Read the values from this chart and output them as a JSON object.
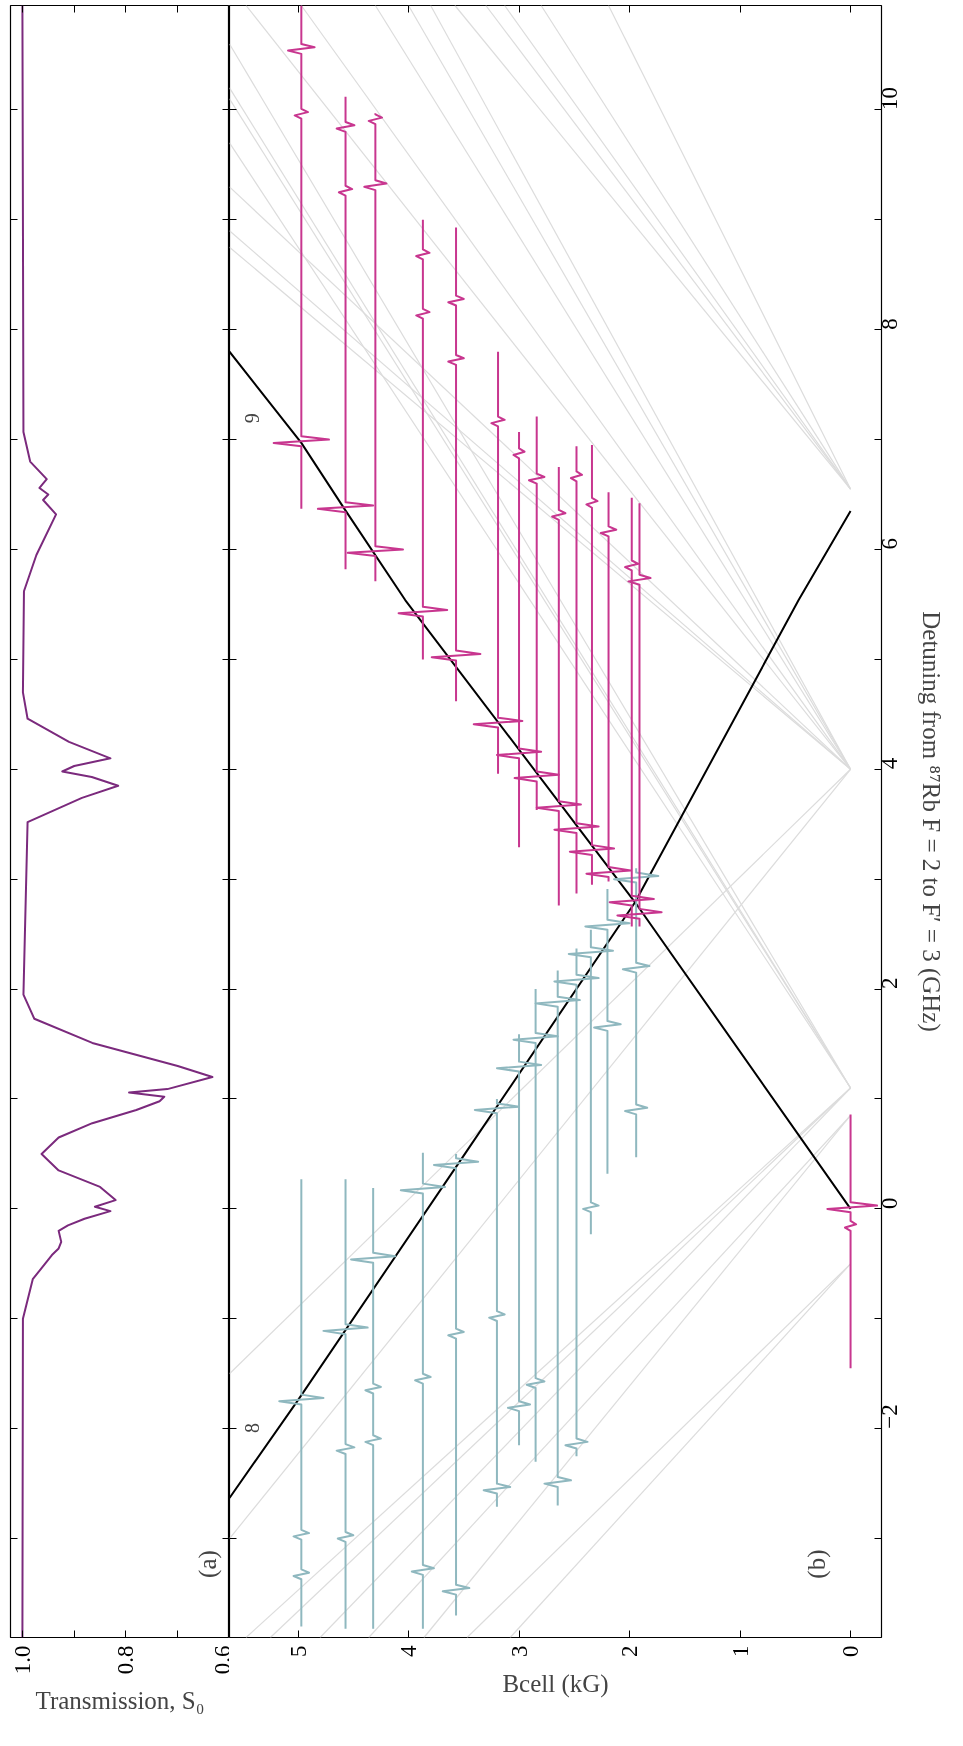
{
  "chart_data": [
    {
      "type": "line",
      "ylim": [
        -3.9,
        10.95
      ],
      "xlim": [
        1.023,
        0.6
      ],
      "yticks": [
        {
          "value": -3,
          "label": null
        },
        {
          "value": -2,
          "label": null
        },
        {
          "value": -1,
          "label": null
        },
        {
          "value": 0,
          "label": null
        },
        {
          "value": 1,
          "label": null
        },
        {
          "value": 2,
          "label": null
        },
        {
          "value": 3,
          "label": null
        },
        {
          "value": 4,
          "label": null
        },
        {
          "value": 5,
          "label": null
        },
        {
          "value": 6,
          "label": null
        },
        {
          "value": 7,
          "label": null
        },
        {
          "value": 8,
          "label": null
        },
        {
          "value": 9,
          "label": null
        },
        {
          "value": 10,
          "label": null
        }
      ],
      "xticks": [
        {
          "value": 0.6,
          "label": "0.6"
        },
        {
          "value": 0.7,
          "label": null
        },
        {
          "value": 0.8,
          "label": "0.8"
        },
        {
          "value": 0.9,
          "label": null
        },
        {
          "value": 1,
          "label": "1.0"
        }
      ],
      "xlabel": "Transmission, S₀",
      "tick_labels": "x",
      "annotations": [
        "(a)"
      ],
      "series": [
        {
          "color": "#7b2a7d",
          "values": [
            -3.9,
            -1.0,
            -0.64,
            -0.42,
            -0.36,
            -0.3,
            -0.2,
            -0.15,
            -0.09,
            -0.02,
            0.02,
            0.08,
            0.2,
            0.35,
            0.5,
            0.65,
            0.78,
            0.9,
            0.98,
            1.02,
            1.06,
            1.09,
            1.2,
            1.3,
            1.51,
            1.73,
            1.95,
            3.52,
            3.74,
            3.85,
            3.93,
            3.98,
            4.03,
            4.1,
            4.25,
            4.46,
            4.7,
            5.62,
            5.95,
            6.32,
            6.45,
            6.5,
            6.56,
            6.64,
            6.8,
            7.07,
            10.95
          ],
          "x": [
            1.0,
            0.999,
            0.98,
            0.943,
            0.93,
            0.925,
            0.93,
            0.912,
            0.88,
            0.83,
            0.86,
            0.82,
            0.85,
            0.93,
            0.963,
            0.93,
            0.865,
            0.78,
            0.735,
            0.726,
            0.794,
            0.72,
            0.633,
            0.7,
            0.865,
            0.977,
            0.998,
            0.99,
            0.885,
            0.815,
            0.866,
            0.923,
            0.9,
            0.83,
            0.91,
            0.99,
            0.999,
            0.997,
            0.973,
            0.935,
            0.96,
            0.95,
            0.967,
            0.953,
            0.985,
            0.998,
            1.0
          ]
        }
      ]
    },
    {
      "type": "line",
      "ylim": [
        -3.9,
        10.95
      ],
      "xlim": [
        5.62,
        -0.28
      ],
      "yticks": [
        {
          "value": -3,
          "label": null
        },
        {
          "value": -2,
          "label": "−2"
        },
        {
          "value": -1,
          "label": null
        },
        0,
        {
          "value": 1,
          "label": null
        },
        2,
        {
          "value": 3,
          "label": null
        },
        4,
        {
          "value": 5,
          "label": null
        },
        6,
        {
          "value": 7,
          "label": null
        },
        8,
        {
          "value": 9,
          "label": null
        },
        10
      ],
      "xticks": [
        0,
        1,
        2,
        3,
        4,
        5
      ],
      "ylabel": "Detuning from ⁸⁷Rb F = 2 to F′ = 3 (GHz)",
      "xlabel": "Bcell (kG)",
      "annotations": [
        "(b)"
      ],
      "series": [
        {
          "color": "#dcdcdc",
          "values": [
            6.55,
            10.95
          ],
          "x": [
            0,
            2.19
          ]
        },
        {
          "color": "#dcdcdc",
          "values": [
            6.55,
            10.95
          ],
          "x": [
            0,
            2.8
          ]
        },
        {
          "color": "#dcdcdc",
          "values": [
            6.55,
            10.95
          ],
          "x": [
            0,
            3.13
          ]
        },
        {
          "color": "#dcdcdc",
          "values": [
            6.55,
            10.95
          ],
          "x": [
            0,
            3.3
          ]
        },
        {
          "color": "#dcdcdc",
          "values": [
            6.55,
            10.95
          ],
          "x": [
            0,
            3.58
          ]
        },
        {
          "color": "#dcdcdc",
          "values": [
            4.0,
            10.95
          ],
          "x": [
            0,
            3.8
          ]
        },
        {
          "color": "#dcdcdc",
          "values": [
            4.0,
            10.95
          ],
          "x": [
            0,
            4.0
          ]
        },
        {
          "color": "#dcdcdc",
          "values": [
            4.0,
            10.95
          ],
          "x": [
            0,
            4.3
          ]
        },
        {
          "color": "#dcdcdc",
          "values": [
            4.0,
            10.95
          ],
          "x": [
            0,
            4.97
          ]
        },
        {
          "color": "#dcdcdc",
          "values": [
            4.0,
            10.95
          ],
          "x": [
            0,
            5.47
          ]
        },
        {
          "color": "#dcdcdc",
          "values": [
            4.0,
            8.75
          ],
          "x": [
            0,
            5.62
          ]
        },
        {
          "color": "#dcdcdc",
          "values": [
            4.0,
            8.9
          ],
          "x": [
            0,
            5.62
          ]
        },
        {
          "color": "#dcdcdc",
          "values": [
            4.0,
            9.3
          ],
          "x": [
            0,
            5.62
          ]
        },
        {
          "color": "#dcdcdc",
          "values": [
            1.1,
            9.7
          ],
          "x": [
            0,
            5.62
          ]
        },
        {
          "color": "#dcdcdc",
          "values": [
            1.1,
            10.1
          ],
          "x": [
            0,
            5.62
          ]
        },
        {
          "color": "#dcdcdc",
          "values": [
            1.1,
            10.2
          ],
          "x": [
            0,
            5.62
          ]
        },
        {
          "color": "#dcdcdc",
          "values": [
            1.1,
            10.6
          ],
          "x": [
            0,
            5.62
          ]
        },
        {
          "color": "#dcdcdc",
          "values": [
            -0.5,
            -3.9
          ],
          "x": [
            0,
            3.08
          ]
        },
        {
          "color": "#dcdcdc",
          "values": [
            -0.5,
            -3.9
          ],
          "x": [
            0,
            3.47
          ]
        },
        {
          "color": "#dcdcdc",
          "values": [
            0.85,
            -3.9
          ],
          "x": [
            0,
            3.86
          ]
        },
        {
          "color": "#dcdcdc",
          "values": [
            0.85,
            -3.9
          ],
          "x": [
            0,
            4.36
          ]
        },
        {
          "color": "#dcdcdc",
          "values": [
            1.1,
            -3.9
          ],
          "x": [
            0,
            4.8
          ]
        },
        {
          "color": "#dcdcdc",
          "values": [
            1.1,
            -3.9
          ],
          "x": [
            0,
            5.25
          ]
        },
        {
          "color": "#dcdcdc",
          "values": [
            1.1,
            -3.9
          ],
          "x": [
            0,
            5.47
          ]
        },
        {
          "color": "#dcdcdc",
          "values": [
            4.0,
            -1.5
          ],
          "x": [
            0,
            5.62
          ]
        },
        {
          "color": "#dcdcdc",
          "values": [
            4.0,
            -3.0
          ],
          "x": [
            0,
            5.62
          ]
        },
        {
          "name": "8",
          "color": "#000000",
          "values": [
            -2.63,
            -1.74,
            0.53,
            2.79,
            5.54,
            6.35
          ],
          "x": [
            5.62,
            5.0,
            3.47,
            1.95,
            0.47,
            0
          ]
        },
        {
          "name": "9",
          "color": "#000000",
          "values": [
            0,
            2.79,
            5.54,
            6.37,
            6.97,
            7.8
          ],
          "x": [
            0,
            1.95,
            4.03,
            4.58,
            4.97,
            5.62
          ]
        },
        {
          "color": "#8fb8bf",
          "values": [
            -3.8,
            -3.37,
            -3.34,
            -3.31,
            -3.28,
            -3.01,
            -2.98,
            -2.95,
            -2.92,
            -1.78,
            -1.75,
            -1.72,
            -1.69,
            0.27
          ],
          "x": [
            4.97,
            4.97,
            5.04,
            4.9,
            4.97,
            4.97,
            5.04,
            4.9,
            4.97,
            4.97,
            5.17,
            4.77,
            4.97,
            4.97
          ]
        },
        {
          "color": "#8fb8bf",
          "values": [
            -3.82,
            -3.03,
            -3.0,
            -2.97,
            -2.94,
            -2.23,
            -2.2,
            -2.17,
            -2.14,
            -1.14,
            -1.11,
            -1.08,
            -1.05,
            0.27
          ],
          "x": [
            4.57,
            4.57,
            4.64,
            4.5,
            4.57,
            4.57,
            4.65,
            4.49,
            4.57,
            4.57,
            4.77,
            4.37,
            4.57,
            4.57
          ]
        },
        {
          "color": "#8fb8bf",
          "values": [
            -3.82,
            -2.15,
            -2.12,
            -2.09,
            -2.06,
            -1.68,
            -1.65,
            -1.62,
            -1.59,
            -0.49,
            -0.46,
            -0.43,
            -0.4,
            0.19
          ],
          "x": [
            4.32,
            4.32,
            4.39,
            4.25,
            4.32,
            4.32,
            4.39,
            4.25,
            4.32,
            4.32,
            4.52,
            4.12,
            4.32,
            4.32
          ]
        },
        {
          "color": "#8fb8bf",
          "values": [
            -3.82,
            -3.33,
            -3.3,
            -3.27,
            -3.24,
            -1.59,
            -1.56,
            -1.53,
            -1.5,
            0.14,
            0.17,
            0.2,
            0.23,
            0.51
          ],
          "x": [
            3.87,
            3.87,
            3.97,
            3.77,
            3.87,
            3.87,
            3.94,
            3.8,
            3.87,
            3.87,
            4.07,
            3.67,
            3.87,
            3.87
          ]
        },
        {
          "color": "#8fb8bf",
          "values": [
            -3.7,
            -3.51,
            -3.48,
            -3.45,
            -3.42,
            -1.18,
            -1.15,
            -1.12,
            -1.09,
            0.37,
            0.4,
            0.43,
            0.46,
            0.5
          ],
          "x": [
            3.57,
            3.57,
            3.69,
            3.45,
            3.57,
            3.57,
            3.64,
            3.5,
            3.57,
            3.57,
            3.77,
            3.37,
            3.57,
            3.57
          ]
        },
        {
          "color": "#8fb8bf",
          "values": [
            -2.71,
            -2.59,
            -2.56,
            -2.53,
            -2.5,
            -1.02,
            -0.99,
            -0.96,
            -0.93,
            0.87,
            0.9,
            0.93,
            0.96,
            1.0
          ],
          "x": [
            3.2,
            3.2,
            3.32,
            3.08,
            3.2,
            3.2,
            3.27,
            3.13,
            3.2,
            3.2,
            3.4,
            3.0,
            3.2,
            3.2
          ]
        },
        {
          "color": "#8fb8bf",
          "values": [
            -2.15,
            -1.84,
            -1.81,
            -1.78,
            -1.75,
            1.25,
            1.28,
            1.31,
            1.34,
            1.59
          ],
          "x": [
            3.0,
            3.0,
            3.1,
            2.9,
            3.0,
            3.0,
            3.2,
            2.8,
            3.0,
            3.0
          ]
        },
        {
          "color": "#8fb8bf",
          "values": [
            -2.3,
            -1.63,
            -1.6,
            -1.57,
            -1.54,
            1.51,
            1.54,
            1.57,
            1.6,
            2.0
          ],
          "x": [
            2.85,
            2.85,
            2.93,
            2.77,
            2.85,
            2.85,
            3.05,
            2.65,
            2.85,
            2.85
          ]
        },
        {
          "color": "#8fb8bf",
          "values": [
            -2.7,
            -2.53,
            -2.5,
            -2.47,
            -2.44,
            1.84,
            1.87,
            1.9,
            1.93,
            2.17
          ],
          "x": [
            2.65,
            2.65,
            2.77,
            2.53,
            2.65,
            2.65,
            2.85,
            2.45,
            2.65,
            2.65
          ]
        },
        {
          "color": "#8fb8bf",
          "values": [
            -2.25,
            -2.18,
            -2.15,
            -2.12,
            -2.09,
            2.04,
            2.07,
            2.1,
            2.13,
            2.37
          ],
          "x": [
            2.48,
            2.48,
            2.58,
            2.38,
            2.48,
            2.48,
            2.68,
            2.28,
            2.48,
            2.48
          ]
        },
        {
          "color": "#8fb8bf",
          "values": [
            -0.23,
            -0.03,
            0.0,
            0.03,
            0.06,
            2.29,
            2.32,
            2.35,
            2.38,
            2.54
          ],
          "x": [
            2.35,
            2.35,
            2.42,
            2.28,
            2.35,
            2.35,
            2.55,
            2.15,
            2.35,
            2.35
          ]
        },
        {
          "color": "#8fb8bf",
          "values": [
            0.32,
            1.62,
            1.65,
            1.68,
            1.71,
            2.54,
            2.57,
            2.6,
            2.63,
            2.91
          ],
          "x": [
            2.2,
            2.2,
            2.32,
            2.08,
            2.2,
            2.2,
            2.4,
            2.0,
            2.2,
            2.2
          ]
        },
        {
          "color": "#8fb8bf",
          "values": [
            0.47,
            0.86,
            0.89,
            0.92,
            0.95,
            2.15,
            2.18,
            2.21,
            2.24,
            2.97,
            3.0,
            3.03,
            3.06,
            3.1
          ],
          "x": [
            1.94,
            1.94,
            2.04,
            1.84,
            1.94,
            1.94,
            2.06,
            1.82,
            1.94,
            1.94,
            2.14,
            1.74,
            1.94,
            1.94
          ]
        },
        {
          "color": "#c8368f",
          "values": [
            6.37,
            6.94,
            6.97,
            7.0,
            7.03,
            9.92,
            9.95,
            9.98,
            10.01,
            10.51,
            10.54,
            10.57,
            10.6,
            10.95
          ],
          "x": [
            4.97,
            4.97,
            5.22,
            4.72,
            4.97,
            4.97,
            5.03,
            4.91,
            4.97,
            4.97,
            5.09,
            4.85,
            4.97,
            4.97
          ]
        },
        {
          "color": "#c8368f",
          "values": [
            5.82,
            6.34,
            6.37,
            6.4,
            6.43,
            9.22,
            9.25,
            9.28,
            9.31,
            9.8,
            9.83,
            9.86,
            9.89,
            10.12
          ],
          "x": [
            4.57,
            4.57,
            4.82,
            4.32,
            4.57,
            4.57,
            4.63,
            4.51,
            4.57,
            4.57,
            4.65,
            4.49,
            4.57,
            4.57
          ]
        },
        {
          "color": "#c8368f",
          "values": [
            5.71,
            5.94,
            5.97,
            6.0,
            6.03,
            9.27,
            9.3,
            9.33,
            9.36,
            9.87,
            9.9,
            9.93,
            9.96,
            9.97
          ],
          "x": [
            4.3,
            4.3,
            4.55,
            4.05,
            4.3,
            4.3,
            4.4,
            4.2,
            4.3,
            4.3,
            4.36,
            4.24,
            4.3,
            4.3
          ]
        },
        {
          "color": "#c8368f",
          "values": [
            5.0,
            5.39,
            5.42,
            5.45,
            5.48,
            8.1,
            8.13,
            8.16,
            8.19,
            8.64,
            8.67,
            8.7,
            8.73,
            9.0
          ],
          "x": [
            3.87,
            3.87,
            4.09,
            3.65,
            3.87,
            3.87,
            3.93,
            3.81,
            3.87,
            3.87,
            3.93,
            3.81,
            3.87,
            3.87
          ]
        },
        {
          "color": "#c8368f",
          "values": [
            4.62,
            4.99,
            5.02,
            5.05,
            5.08,
            7.68,
            7.71,
            7.74,
            7.77,
            8.22,
            8.25,
            8.28,
            8.31,
            8.93
          ],
          "x": [
            3.57,
            3.57,
            3.79,
            3.35,
            3.57,
            3.57,
            3.64,
            3.5,
            3.57,
            3.57,
            3.64,
            3.5,
            3.57,
            3.57
          ]
        },
        {
          "color": "#c8368f",
          "values": [
            3.96,
            4.38,
            4.41,
            4.44,
            4.47,
            7.12,
            7.15,
            7.18,
            7.21,
            7.8
          ],
          "x": [
            3.19,
            3.19,
            3.41,
            2.97,
            3.19,
            3.19,
            3.25,
            3.13,
            3.19,
            3.19
          ]
        },
        {
          "color": "#c8368f",
          "values": [
            3.29,
            4.1,
            4.13,
            4.16,
            4.19,
            6.83,
            6.86,
            6.89,
            6.92,
            7.07
          ],
          "x": [
            3.0,
            3.0,
            3.2,
            2.8,
            3.0,
            3.0,
            3.05,
            2.95,
            3.0,
            3.0
          ]
        },
        {
          "color": "#c8368f",
          "values": [
            3.63,
            3.89,
            3.92,
            3.95,
            3.98,
            6.6,
            6.63,
            6.66,
            6.69,
            7.21
          ],
          "x": [
            2.84,
            2.84,
            3.04,
            2.64,
            2.84,
            2.84,
            2.91,
            2.77,
            2.84,
            2.84
          ]
        },
        {
          "color": "#c8368f",
          "values": [
            2.76,
            3.62,
            3.65,
            3.68,
            3.71,
            6.27,
            6.3,
            6.33,
            6.36,
            6.75
          ],
          "x": [
            2.64,
            2.64,
            2.84,
            2.44,
            2.64,
            2.64,
            2.7,
            2.58,
            2.64,
            2.64
          ]
        },
        {
          "color": "#c8368f",
          "values": [
            2.87,
            3.42,
            3.45,
            3.48,
            3.51,
            6.62,
            6.65,
            6.68,
            6.71,
            6.94
          ],
          "x": [
            2.48,
            2.48,
            2.68,
            2.28,
            2.48,
            2.48,
            2.53,
            2.43,
            2.48,
            2.48
          ]
        },
        {
          "color": "#c8368f",
          "values": [
            2.95,
            3.22,
            3.25,
            3.28,
            3.31,
            6.38,
            6.41,
            6.44,
            6.47,
            6.95
          ],
          "x": [
            2.34,
            2.34,
            2.54,
            2.14,
            2.34,
            2.34,
            2.39,
            2.29,
            2.34,
            2.34
          ]
        },
        {
          "color": "#c8368f",
          "values": [
            2.98,
            3.02,
            3.05,
            3.08,
            3.11,
            6.12,
            6.15,
            6.18,
            6.21,
            6.52
          ],
          "x": [
            2.19,
            2.19,
            2.39,
            1.99,
            2.19,
            2.19,
            2.26,
            2.12,
            2.19,
            2.19
          ]
        },
        {
          "color": "#c8368f",
          "values": [
            2.57,
            2.76,
            2.79,
            2.82,
            2.85,
            5.81,
            5.84,
            5.87,
            5.9,
            6.47
          ],
          "x": [
            1.98,
            1.98,
            2.18,
            1.78,
            1.98,
            1.98,
            2.04,
            1.92,
            1.98,
            1.98
          ]
        },
        {
          "color": "#c8368f",
          "values": [
            2.57,
            2.64,
            2.67,
            2.7,
            2.73,
            5.68,
            5.71,
            5.74,
            5.77,
            6.42
          ],
          "x": [
            1.91,
            1.91,
            2.11,
            1.71,
            1.91,
            1.91,
            2.01,
            1.81,
            1.91,
            1.91
          ]
        },
        {
          "color": "#c8368f",
          "values": [
            -1.45,
            -0.2,
            -0.17,
            -0.14,
            -0.11,
            -0.03,
            0.0,
            0.03,
            0.06,
            0.86
          ],
          "x": [
            0,
            0,
            0.05,
            -0.05,
            0,
            0,
            0.21,
            -0.24,
            0,
            0
          ]
        }
      ]
    }
  ]
}
